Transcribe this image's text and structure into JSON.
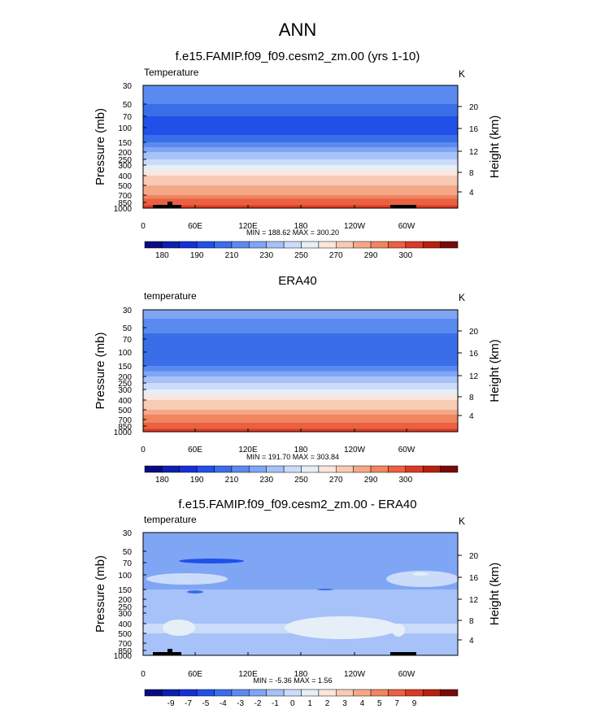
{
  "main_title": "ANN",
  "colors": {
    "abs_palette": [
      "#0a0a80",
      "#0d1fb0",
      "#1530d8",
      "#2050e8",
      "#3a6ee8",
      "#5a8af0",
      "#7fa6f5",
      "#a6c2f8",
      "#cbdcfa",
      "#e6eef8",
      "#fbe6dc",
      "#f8cbb4",
      "#f5a888",
      "#f08560",
      "#ea6040",
      "#dc3a24",
      "#b82010",
      "#7a0a0a"
    ],
    "diff_palette": [
      "#0a0a80",
      "#0d1fb0",
      "#1530d8",
      "#2050e8",
      "#3a6ee8",
      "#5a8af0",
      "#7fa6f5",
      "#a6c2f8",
      "#cbdcfa",
      "#e6eef8",
      "#fbe6dc",
      "#f8cbb4",
      "#f5a888",
      "#f08560",
      "#ea6040",
      "#dc3a24",
      "#b82010",
      "#7a0a0a"
    ]
  },
  "chart_data": [
    {
      "type": "heatmap",
      "title": "f.e15.FAMIP.f09_f09.cesm2_zm.00 (yrs 1-10)",
      "left_label": "Temperature",
      "units": "K",
      "xlabel": "",
      "ylabel": "Pressure (mb)",
      "y2label": "Height (km)",
      "x_ticks": [
        "0",
        "60E",
        "120E",
        "180",
        "120W",
        "60W"
      ],
      "y_ticks": [
        "30",
        "50",
        "70",
        "100",
        "150",
        "200",
        "250",
        "300",
        "400",
        "500",
        "700",
        "850",
        "1000"
      ],
      "y2_ticks": [
        "20",
        "16",
        "12",
        "8",
        "4"
      ],
      "stats": "MIN = 188.62  MAX = 300.20",
      "colorbar_labels": [
        "180",
        "190",
        "210",
        "230",
        "250",
        "270",
        "290",
        "300"
      ],
      "pressure_levels": [
        30,
        50,
        70,
        100,
        150,
        200,
        250,
        300,
        400,
        500,
        700,
        850,
        1000
      ],
      "band_values": [
        205,
        200,
        195,
        192,
        200,
        210,
        220,
        230,
        250,
        262,
        275,
        285,
        295
      ]
    },
    {
      "type": "heatmap",
      "title": "ERA40",
      "left_label": "temperature",
      "units": "K",
      "xlabel": "",
      "ylabel": "Pressure (mb)",
      "y2label": "Height (km)",
      "x_ticks": [
        "0",
        "60E",
        "120E",
        "180",
        "120W",
        "60W"
      ],
      "y_ticks": [
        "30",
        "50",
        "70",
        "100",
        "150",
        "200",
        "250",
        "300",
        "400",
        "500",
        "700",
        "850",
        "1000"
      ],
      "y2_ticks": [
        "20",
        "16",
        "12",
        "8",
        "4"
      ],
      "stats": "MIN = 191.70  MAX = 303.84",
      "colorbar_labels": [
        "180",
        "190",
        "210",
        "230",
        "250",
        "270",
        "290",
        "300"
      ],
      "pressure_levels": [
        30,
        50,
        70,
        100,
        150,
        200,
        250,
        300,
        400,
        500,
        700,
        850,
        1000
      ],
      "band_values": [
        206,
        202,
        197,
        194,
        201,
        211,
        221,
        232,
        252,
        264,
        277,
        287,
        298
      ]
    },
    {
      "type": "heatmap",
      "title": "f.e15.FAMIP.f09_f09.cesm2_zm.00 - ERA40",
      "left_label": "temperature",
      "units": "K",
      "xlabel": "",
      "ylabel": "Pressure (mb)",
      "y2label": "Height (km)",
      "x_ticks": [
        "0",
        "60E",
        "120E",
        "180",
        "120W",
        "60W"
      ],
      "y_ticks": [
        "30",
        "50",
        "70",
        "100",
        "150",
        "200",
        "250",
        "300",
        "400",
        "500",
        "700",
        "850",
        "1000"
      ],
      "y2_ticks": [
        "20",
        "16",
        "12",
        "8",
        "4"
      ],
      "stats": "MIN = -5.36  MAX =  1.56",
      "colorbar_labels": [
        "-9",
        "-7",
        "-5",
        "-4",
        "-3",
        "-2",
        "-1",
        "0",
        "1",
        "2",
        "3",
        "4",
        "5",
        "7",
        "9"
      ],
      "pressure_levels": [
        30,
        50,
        70,
        100,
        150,
        200,
        250,
        300,
        400,
        500,
        700,
        850,
        1000
      ],
      "band_values": [
        -1,
        -2,
        -2,
        -1.5,
        -1,
        -1,
        -1,
        -1,
        -0.5,
        -0.5,
        -0.8,
        -0.8,
        -1
      ]
    }
  ]
}
